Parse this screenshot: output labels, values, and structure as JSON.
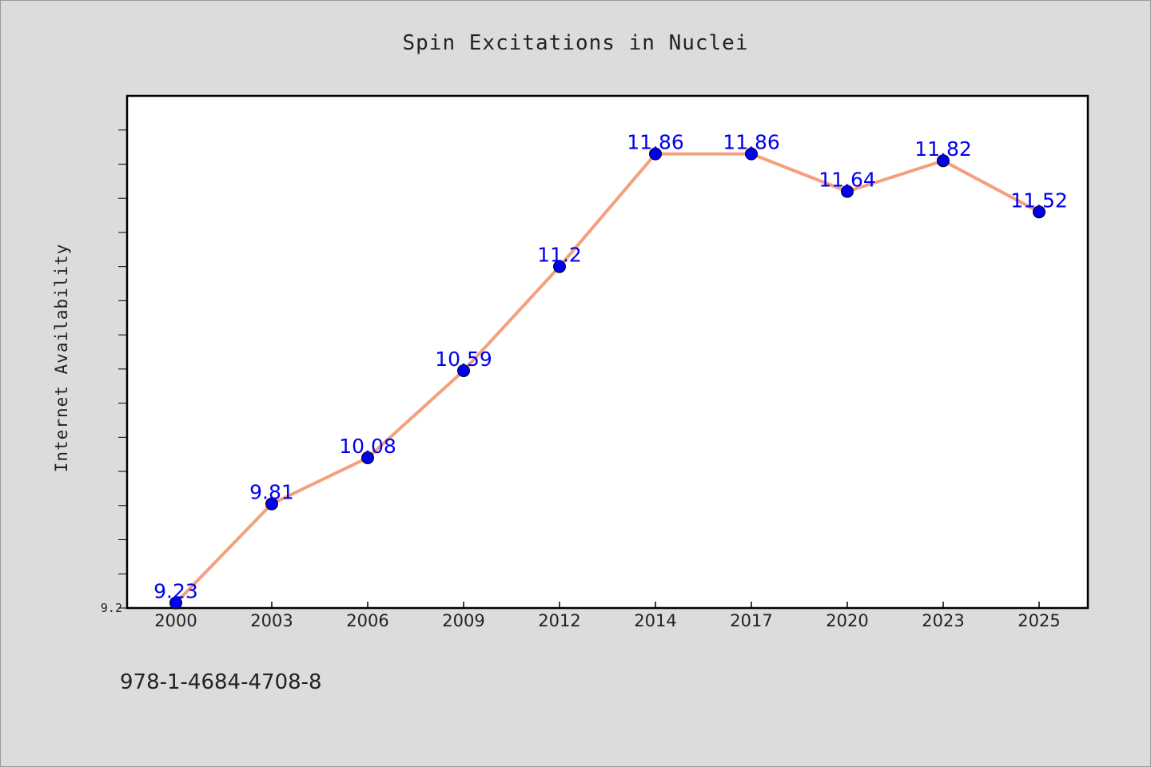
{
  "chart_data": {
    "type": "line",
    "title": "Spin Excitations in Nuclei",
    "xlabel": "",
    "ylabel": "Internet Availability",
    "categories": [
      "2000",
      "2003",
      "2006",
      "2009",
      "2012",
      "2014",
      "2017",
      "2020",
      "2023",
      "2025"
    ],
    "series": [
      {
        "values": [
          9.23,
          9.81,
          10.08,
          10.59,
          11.2,
          11.86,
          11.86,
          11.64,
          11.82,
          11.52
        ],
        "data_labels": [
          "9.23",
          "9.81",
          "10.08",
          "10.59",
          "11.2",
          "11.86",
          "11.86",
          "11.64",
          "11.82",
          "11.52"
        ]
      }
    ],
    "ylim": [
      9.2,
      12.2
    ],
    "yticks_labeled": [
      "9.2"
    ],
    "grid": false,
    "line_color": "#f4a07e",
    "marker_color": "#0000ee",
    "label_color": "#0000ee"
  },
  "footer": {
    "isbn": "978-1-4684-4708-8"
  }
}
